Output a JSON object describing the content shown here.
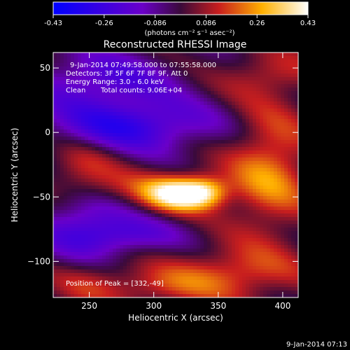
{
  "colorbar": {
    "ticks": [
      "-0.43",
      "-0.26",
      "-0.086",
      "0.086",
      "0.26",
      "0.43"
    ],
    "unit_label": "(photons cm⁻² s⁻¹ asec⁻²)",
    "colors": [
      "#0000ff",
      "#6a00c8",
      "#3a0a3a",
      "#c81e1e",
      "#ffb000",
      "#ffffff"
    ]
  },
  "footer": {
    "timestamp": "9-Jan-2014 07:13"
  },
  "chart_data": {
    "type": "heatmap",
    "title": "Reconstructed RHESSI Image",
    "xlabel": "Heliocentric X (arcsec)",
    "ylabel": "Heliocentric Y (arcsec)",
    "xlim": [
      222,
      412
    ],
    "ylim": [
      -128,
      62
    ],
    "xticks": [
      250,
      300,
      350,
      400
    ],
    "yticks": [
      50,
      0,
      -50,
      -100
    ],
    "value_range": [
      -0.43,
      0.43
    ],
    "annotations": {
      "time_range": "9-Jan-2014 07:49:58.000 to 07:55:58.000",
      "detectors": "Detectors: 3F 5F 6F 7F 8F 9F, Att 0",
      "energy": "Energy Range: 3.0 - 6.0 keV",
      "method": "Clean",
      "counts": "Total counts: 9.06E+04",
      "peak": "Position of Peak = [332,-49]"
    },
    "peak": {
      "x": 332,
      "y": -49
    },
    "features": [
      {
        "x": 320,
        "y": -48,
        "amp": 0.38,
        "sx": 18,
        "sy": 9
      },
      {
        "x": 340,
        "y": -46,
        "amp": 0.2,
        "sx": 12,
        "sy": 8
      },
      {
        "x": 300,
        "y": -44,
        "amp": 0.12,
        "sx": 40,
        "sy": 10
      },
      {
        "x": 280,
        "y": 5,
        "amp": -0.28,
        "sx": 45,
        "sy": 14
      },
      {
        "x": 260,
        "y": 40,
        "amp": -0.2,
        "sx": 40,
        "sy": 16
      },
      {
        "x": 245,
        "y": -70,
        "amp": -0.2,
        "sx": 25,
        "sy": 20
      },
      {
        "x": 280,
        "y": -80,
        "amp": -0.16,
        "sx": 30,
        "sy": 10
      },
      {
        "x": 390,
        "y": -30,
        "amp": 0.22,
        "sx": 22,
        "sy": 35
      },
      {
        "x": 390,
        "y": 45,
        "amp": 0.12,
        "sx": 25,
        "sy": 12
      },
      {
        "x": 360,
        "y": -110,
        "amp": 0.18,
        "sx": 35,
        "sy": 14
      },
      {
        "x": 300,
        "y": -120,
        "amp": 0.12,
        "sx": 30,
        "sy": 10
      },
      {
        "x": 245,
        "y": -30,
        "amp": 0.14,
        "sx": 20,
        "sy": 18
      },
      {
        "x": 250,
        "y": -115,
        "amp": 0.1,
        "sx": 20,
        "sy": 12
      }
    ]
  }
}
